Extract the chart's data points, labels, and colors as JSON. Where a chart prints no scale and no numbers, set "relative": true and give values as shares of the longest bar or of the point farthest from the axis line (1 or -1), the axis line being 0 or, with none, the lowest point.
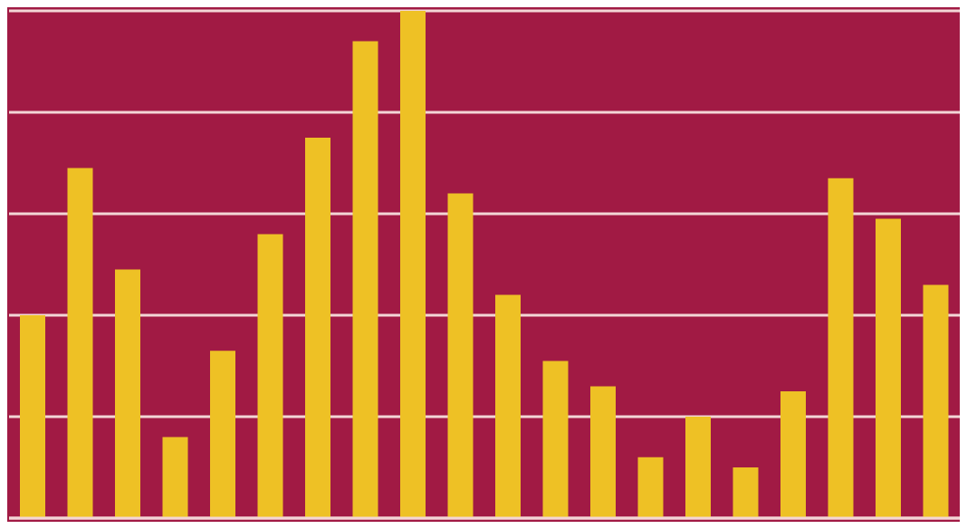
{
  "chart_data": {
    "type": "bar",
    "relative": true,
    "grid": "y",
    "color": "#eec125",
    "categories": [
      null,
      null,
      null,
      null,
      null,
      null,
      null,
      null,
      null,
      null,
      null,
      null,
      null,
      null,
      null,
      null,
      null,
      null,
      null,
      null
    ],
    "values": [
      0.4,
      0.69,
      0.49,
      0.16,
      0.33,
      0.56,
      0.75,
      0.94,
      1,
      0.64,
      0.44,
      0.31,
      0.26,
      0.12,
      0.2,
      0.1,
      0.25,
      0.67,
      0.59,
      0.46
    ]
  }
}
